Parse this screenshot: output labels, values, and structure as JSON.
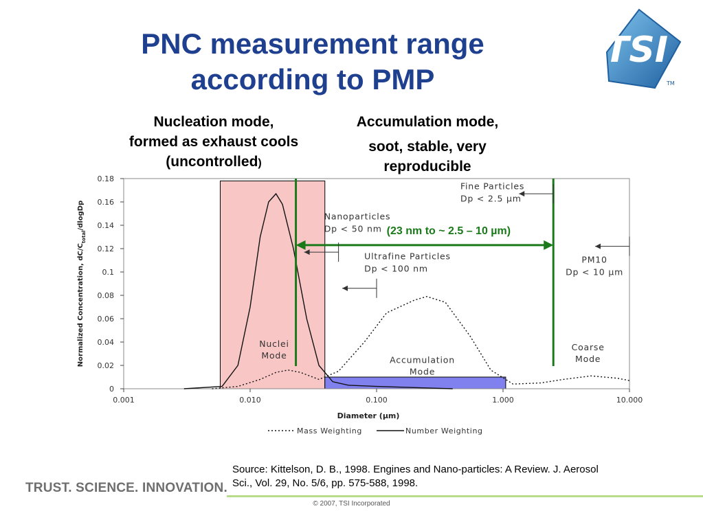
{
  "slide": {
    "title_line1": "PNC measurement range",
    "title_line2": "according to PMP",
    "nucleation_line1": "Nucleation mode,",
    "nucleation_line2": "formed as exhaust cools",
    "nucleation_line3": "(uncontrolled",
    "nucleation_line3_tail": ")",
    "accumulation_line1": "Accumulation mode,",
    "accumulation_line2": "soot, stable, very",
    "accumulation_line3": "reproducible",
    "source_line1": "Source: Kittelson, D. B., 1998. Engines and Nano-particles: A Review. J. Aerosol",
    "source_line2": "Sci., Vol. 29, No. 5/6, pp. 575-588, 1998.",
    "tagline": "TRUST. SCIENCE. INNOVATION.",
    "copyright": "© 2007, TSI Incorporated",
    "logo_text": "TSI",
    "logo_tm": "TM",
    "colors": {
      "title": "#1f3f8f",
      "green_range": "#1a7a1a",
      "nuclei_fill": "#f9c6c6",
      "accum_band": "#8080ee",
      "logo_blue": "#2a7fc0"
    }
  },
  "chart_data": {
    "type": "line",
    "x_scale": "log",
    "xlim": [
      0.001,
      10.0
    ],
    "ylim": [
      0,
      0.18
    ],
    "xlabel": "Diameter (µm)",
    "ylabel_main": "Normalized Concentration, dC/C",
    "ylabel_sub": "total",
    "ylabel_tail": "/dlogDp",
    "x_ticks": [
      0.001,
      0.01,
      0.1,
      1.0,
      10.0
    ],
    "x_tick_labels": [
      "0.001",
      "0.010",
      "0.100",
      "1.000",
      "10.000"
    ],
    "y_ticks": [
      0,
      0.02,
      0.04,
      0.06,
      0.08,
      0.1,
      0.12,
      0.14,
      0.16,
      0.18
    ],
    "y_tick_labels": [
      "0",
      "0.02",
      "0.04",
      "0.06",
      "0.08",
      "0.1",
      "0.12",
      "0.14",
      "0.16",
      "0.18"
    ],
    "series": [
      {
        "name": "Mass Weighting",
        "style": "dotted",
        "points": [
          [
            0.005,
            0.0
          ],
          [
            0.008,
            0.002
          ],
          [
            0.012,
            0.008
          ],
          [
            0.016,
            0.014
          ],
          [
            0.02,
            0.016
          ],
          [
            0.025,
            0.014
          ],
          [
            0.035,
            0.008
          ],
          [
            0.05,
            0.015
          ],
          [
            0.08,
            0.04
          ],
          [
            0.12,
            0.065
          ],
          [
            0.2,
            0.076
          ],
          [
            0.25,
            0.079
          ],
          [
            0.35,
            0.074
          ],
          [
            0.55,
            0.045
          ],
          [
            0.8,
            0.016
          ],
          [
            1.2,
            0.004
          ],
          [
            2.0,
            0.005
          ],
          [
            3.0,
            0.008
          ],
          [
            5.0,
            0.011
          ],
          [
            8.0,
            0.009
          ],
          [
            10.0,
            0.007
          ]
        ]
      },
      {
        "name": "Number Weighting",
        "style": "solid",
        "points": [
          [
            0.003,
            0.0
          ],
          [
            0.006,
            0.002
          ],
          [
            0.008,
            0.02
          ],
          [
            0.01,
            0.07
          ],
          [
            0.012,
            0.13
          ],
          [
            0.014,
            0.16
          ],
          [
            0.016,
            0.167
          ],
          [
            0.018,
            0.158
          ],
          [
            0.022,
            0.12
          ],
          [
            0.028,
            0.06
          ],
          [
            0.035,
            0.02
          ],
          [
            0.045,
            0.006
          ],
          [
            0.06,
            0.003
          ],
          [
            0.1,
            0.002
          ],
          [
            0.2,
            0.001
          ],
          [
            0.4,
            0.0
          ]
        ]
      }
    ],
    "annotations": {
      "nuclei_mode": [
        "Nuclei",
        "Mode"
      ],
      "accumulation_mode": [
        "Accumulation",
        "Mode"
      ],
      "coarse_mode": [
        "Coarse",
        "Mode"
      ],
      "nanoparticles": [
        "Nanoparticles",
        "Dp < 50 nm"
      ],
      "ultrafine": [
        "Ultrafine Particles",
        "Dp < 100 nm"
      ],
      "fine": [
        "Fine Particles",
        "Dp < 2.5 µm"
      ],
      "pm10": [
        "PM10",
        "Dp < 10 µm"
      ],
      "range_label": "(23 nm to ~ 2.5 – 10 µm)"
    },
    "regions": {
      "nucleation_box_x": [
        0.0058,
        0.039
      ],
      "nucleation_box_y": [
        0,
        0.178
      ],
      "accum_band_x": [
        0.039,
        1.05
      ],
      "accum_band_y": [
        0.0,
        0.01
      ]
    },
    "range_lines": [
      0.023,
      2.5
    ],
    "range_arrow_y": 0.123,
    "limit_markers": [
      {
        "label": "nanoparticles",
        "x": 0.05,
        "y": 0.117
      },
      {
        "label": "ultrafine",
        "x": 0.1,
        "y": 0.086
      },
      {
        "label": "fine",
        "x": 2.5,
        "y": 0.167
      },
      {
        "label": "pm10",
        "x": 10.0,
        "y": 0.122
      }
    ],
    "legend": [
      "Mass Weighting",
      "Number Weighting"
    ],
    "legend_position": "bottom-center"
  }
}
